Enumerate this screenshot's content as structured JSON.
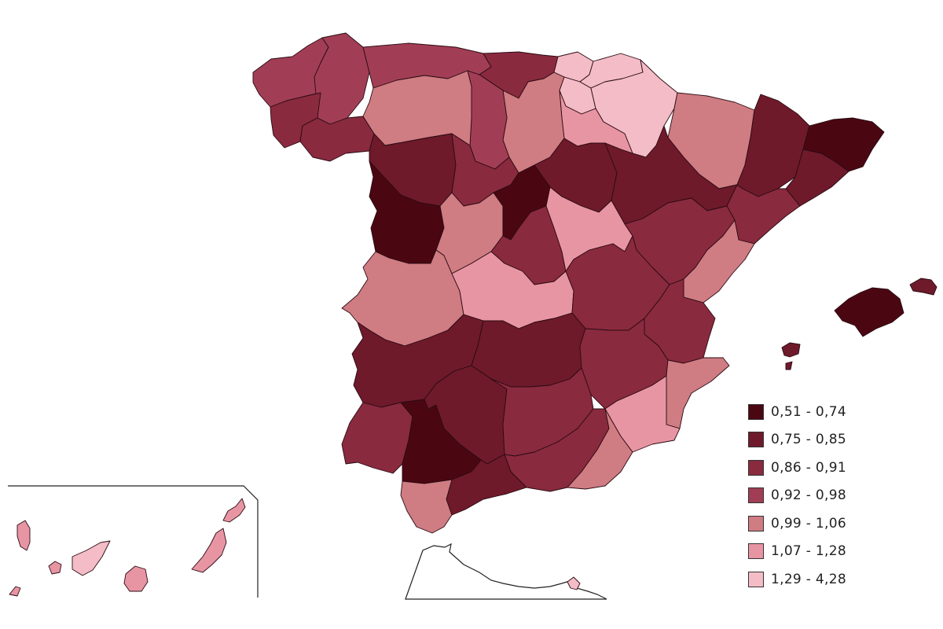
{
  "legend": {
    "position": "bottom-right",
    "classes": [
      {
        "label": "0,51 - 0,74",
        "color": "#4a0712"
      },
      {
        "label": "0,75 - 0,85",
        "color": "#6e1a2b"
      },
      {
        "label": "0,86 - 0,91",
        "color": "#8a2a3f"
      },
      {
        "label": "0,92 - 0,98",
        "color": "#a13e55"
      },
      {
        "label": "0,99 - 1,06",
        "color": "#cf7c82"
      },
      {
        "label": "1,07 - 1,28",
        "color": "#e895a3"
      },
      {
        "label": "1,29 - 4,28",
        "color": "#f3bcc6"
      }
    ]
  },
  "regions": [
    {
      "name": "galicia-coast-west",
      "class": 3
    },
    {
      "name": "galicia-north-east",
      "class": 3
    },
    {
      "name": "galicia-south-west",
      "class": 2
    },
    {
      "name": "galicia-south-east",
      "class": 2
    },
    {
      "name": "asturias",
      "class": 3
    },
    {
      "name": "cantabria",
      "class": 2
    },
    {
      "name": "basque-west",
      "class": 6
    },
    {
      "name": "basque-central",
      "class": 6
    },
    {
      "name": "basque-east",
      "class": 6
    },
    {
      "name": "navarra",
      "class": 6
    },
    {
      "name": "la-rioja",
      "class": 5
    },
    {
      "name": "burgos",
      "class": 4
    },
    {
      "name": "palencia",
      "class": 3
    },
    {
      "name": "leon",
      "class": 4
    },
    {
      "name": "zamora",
      "class": 1
    },
    {
      "name": "valladolid",
      "class": 2
    },
    {
      "name": "soria",
      "class": 1
    },
    {
      "name": "huesca",
      "class": 4
    },
    {
      "name": "lleida",
      "class": 1
    },
    {
      "name": "girona",
      "class": 0
    },
    {
      "name": "barcelona",
      "class": 1
    },
    {
      "name": "zaragoza",
      "class": 1
    },
    {
      "name": "tarragona",
      "class": 2
    },
    {
      "name": "salamanca",
      "class": 0
    },
    {
      "name": "avila",
      "class": 4
    },
    {
      "name": "segovia",
      "class": 0
    },
    {
      "name": "madrid",
      "class": 2
    },
    {
      "name": "guadalajara",
      "class": 5
    },
    {
      "name": "teruel",
      "class": 2
    },
    {
      "name": "castellon",
      "class": 4
    },
    {
      "name": "caceres",
      "class": 4
    },
    {
      "name": "toledo",
      "class": 5
    },
    {
      "name": "cuenca",
      "class": 2
    },
    {
      "name": "valencia",
      "class": 2
    },
    {
      "name": "badajoz",
      "class": 1
    },
    {
      "name": "ciudad-real",
      "class": 1
    },
    {
      "name": "albacete",
      "class": 2
    },
    {
      "name": "alicante",
      "class": 4
    },
    {
      "name": "murcia",
      "class": 5
    },
    {
      "name": "huelva",
      "class": 2
    },
    {
      "name": "sevilla",
      "class": 0
    },
    {
      "name": "cordoba",
      "class": 1
    },
    {
      "name": "jaen",
      "class": 2
    },
    {
      "name": "granada",
      "class": 2
    },
    {
      "name": "almeria",
      "class": 4
    },
    {
      "name": "malaga",
      "class": 1
    },
    {
      "name": "cadiz",
      "class": 4
    },
    {
      "name": "mallorca",
      "class": 0
    },
    {
      "name": "menorca",
      "class": 1
    },
    {
      "name": "ibiza",
      "class": 1
    },
    {
      "name": "la-palma",
      "class": 5
    },
    {
      "name": "la-gomera",
      "class": 5
    },
    {
      "name": "el-hierro",
      "class": 5
    },
    {
      "name": "tenerife",
      "class": 6
    },
    {
      "name": "gran-canaria",
      "class": 5
    },
    {
      "name": "fuerteventura",
      "class": 5
    },
    {
      "name": "lanzarote",
      "class": 5
    },
    {
      "name": "ceuta",
      "class": 6
    }
  ]
}
